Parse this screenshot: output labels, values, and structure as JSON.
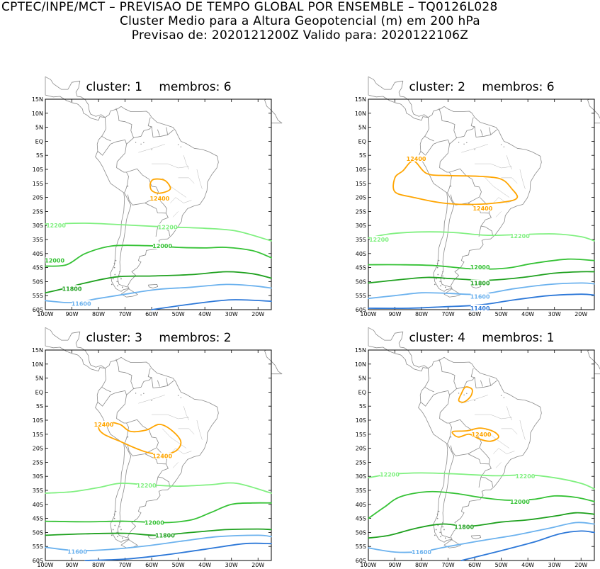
{
  "header": {
    "line1": "CPTEC/INPE/MCT – PREVISAO DE TEMPO GLOBAL POR ENSEMBLE – TQ0126L028",
    "line2": "Cluster Medio para a Altura Geopotencial (m) em 200 hPa",
    "line3": "Previsao de: 2020121200Z    Valido para: 2020122106Z"
  },
  "lat_labels": [
    "15N",
    "10N",
    "5N",
    "EQ",
    "5S",
    "10S",
    "15S",
    "20S",
    "25S",
    "30S",
    "35S",
    "40S",
    "45S",
    "50S",
    "55S",
    "60S"
  ],
  "lon_labels": [
    "100W",
    "90W",
    "80W",
    "70W",
    "60W",
    "50W",
    "40W",
    "30W",
    "20W"
  ],
  "colors": {
    "c12400": "#ffa500",
    "c12200": "#80f080",
    "c12000": "#36c236",
    "c11800": "#1fa11f",
    "c11600": "#6cb2ee",
    "c11400": "#2d78d8",
    "coast": "#8a8a8a"
  },
  "panels": [
    {
      "cluster_label": "cluster:",
      "cluster_value": "1",
      "members_label": "membros:",
      "members_value": "6",
      "contour_labels": {
        "c12400": [
          "12400"
        ],
        "c12200": [
          "12200",
          "12200"
        ],
        "c12000": [
          "12000",
          "12000"
        ],
        "c11800": [
          "11800"
        ],
        "c11600": [
          "11600"
        ]
      }
    },
    {
      "cluster_label": "cluster:",
      "cluster_value": "2",
      "members_label": "membros:",
      "members_value": "6",
      "contour_labels": {
        "c12400": [
          "12400",
          "12400"
        ],
        "c12200": [
          "12200",
          "12200"
        ],
        "c12000": [
          "12000"
        ],
        "c11800": [
          "11800"
        ],
        "c11600": [
          "11600"
        ],
        "c11400": [
          "11400"
        ]
      }
    },
    {
      "cluster_label": "cluster:",
      "cluster_value": "3",
      "members_label": "membros:",
      "members_value": "2",
      "contour_labels": {
        "c12400": [
          "12400",
          "12400"
        ],
        "c12200": [
          "12200"
        ],
        "c12000": [
          "12000"
        ],
        "c11800": [
          "11800"
        ],
        "c11600": [
          "11600"
        ]
      }
    },
    {
      "cluster_label": "cluster:",
      "cluster_value": "4",
      "members_label": "membros:",
      "members_value": "1",
      "contour_labels": {
        "c12400": [
          "12400"
        ],
        "c12200": [
          "12200",
          "12200"
        ],
        "c12000": [
          "12000"
        ],
        "c11800": [
          "11800"
        ],
        "c11600": [
          "11600"
        ]
      }
    }
  ]
}
